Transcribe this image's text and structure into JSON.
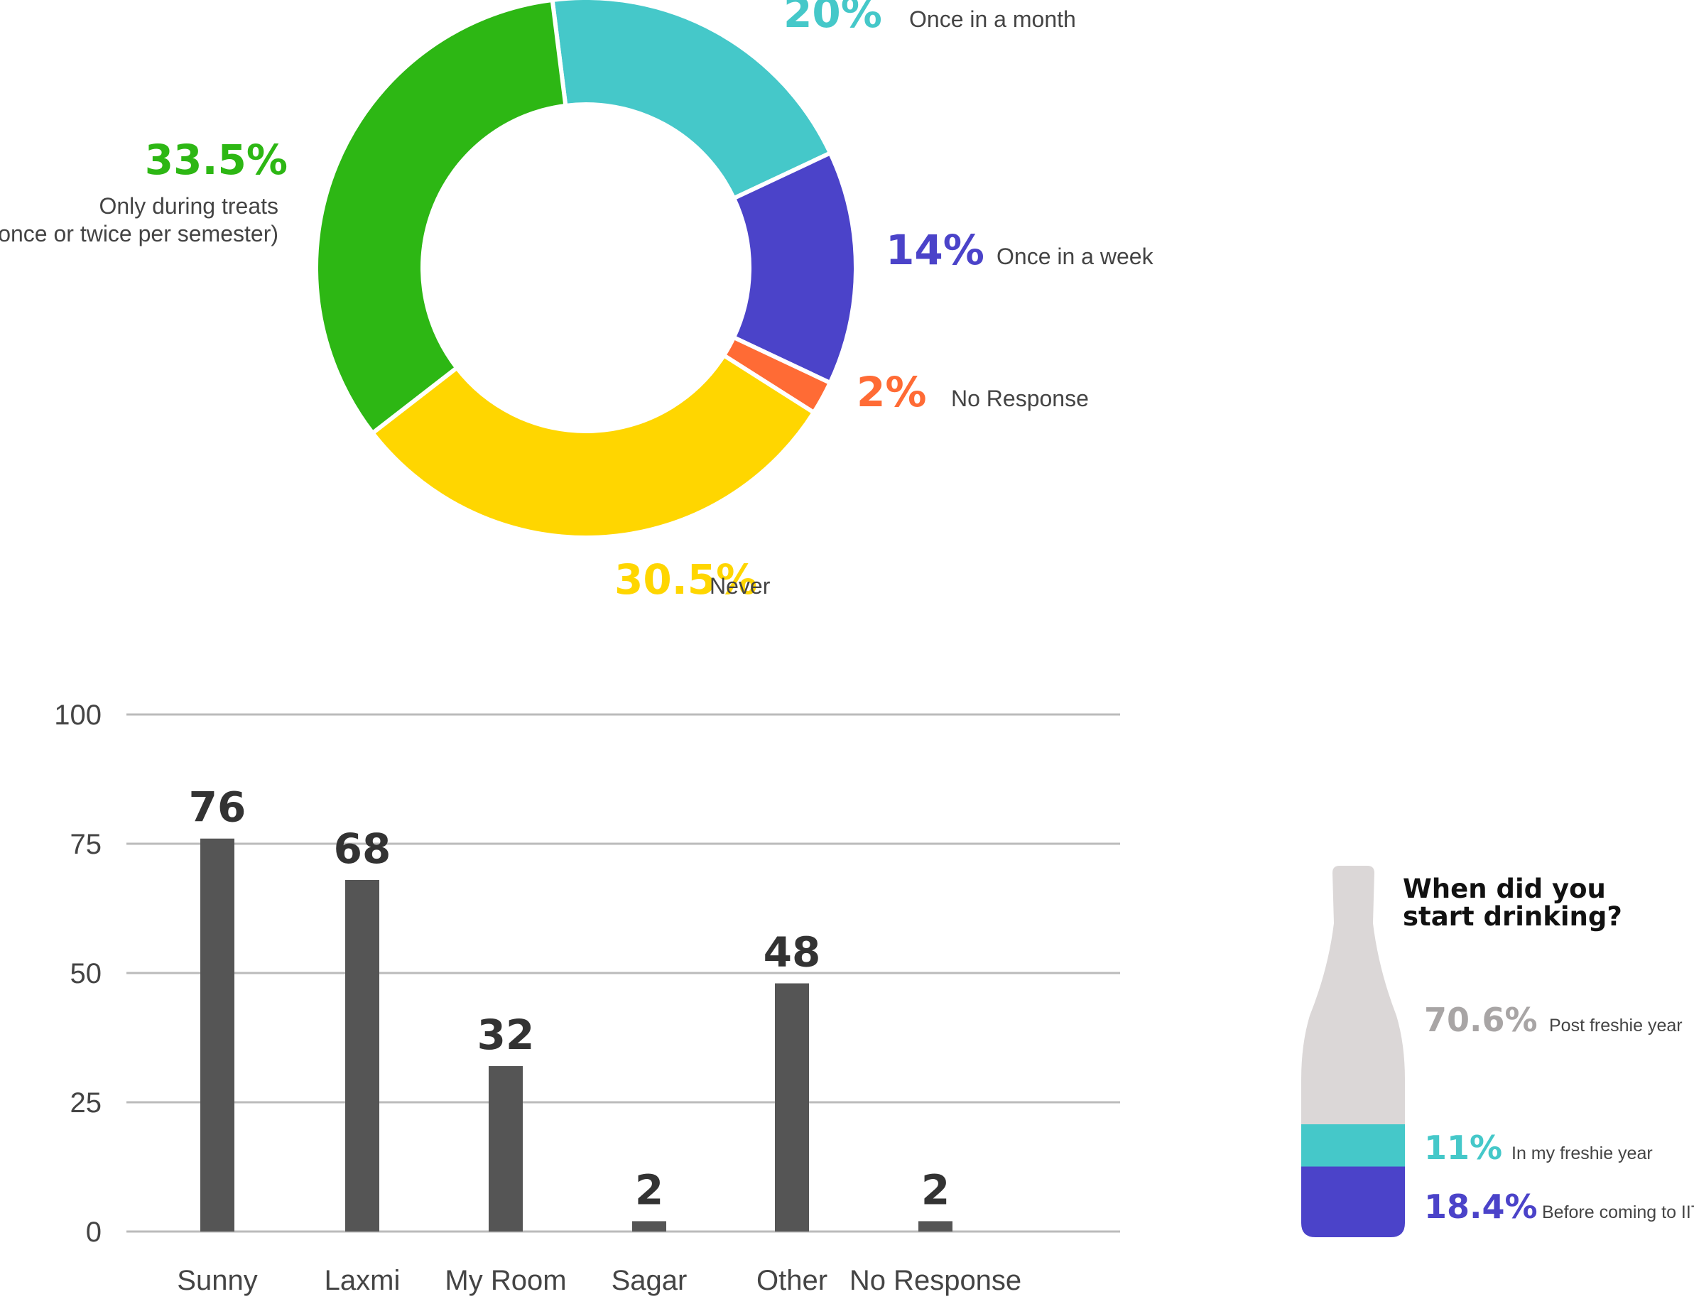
{
  "chart_data": [
    {
      "type": "pie",
      "title": "",
      "slices": [
        {
          "value": 20,
          "pct_label": "20%",
          "label": "Once in a month",
          "color": "#45C8C9"
        },
        {
          "value": 14,
          "pct_label": "14%",
          "label": "Once in a week",
          "color": "#4B43C9"
        },
        {
          "value": 2,
          "pct_label": "2%",
          "label": "No Response",
          "color": "#FF6B35"
        },
        {
          "value": 30.5,
          "pct_label": "30.5%",
          "label": "Never",
          "color": "#FFD600"
        },
        {
          "value": 33.5,
          "pct_label": "33.5%",
          "label_lines": [
            "Only during treats",
            "(once or twice per semester)"
          ],
          "color": "#2DB714"
        }
      ]
    },
    {
      "type": "bar",
      "title": "",
      "categories": [
        "Sunny",
        "Laxmi",
        "My Room",
        "Sagar",
        "Other",
        "No Response"
      ],
      "values": [
        76,
        68,
        32,
        2,
        48,
        2
      ],
      "data_labels": [
        "76",
        "68",
        "32",
        "2",
        "48",
        "2"
      ],
      "yticks": [
        "0",
        "25",
        "50",
        "75",
        "100"
      ],
      "ylim": [
        0,
        100
      ],
      "grid": true,
      "bar_color": "#555555",
      "grid_color": "#BBBBBB"
    },
    {
      "type": "bar",
      "subtype": "stacked-bottle",
      "title_lines": [
        "When did you",
        "start drinking?"
      ],
      "segments": [
        {
          "value": 18.4,
          "pct_label": "18.4%",
          "label": "Before coming to IIT",
          "color": "#4B43C9"
        },
        {
          "value": 11,
          "pct_label": "11%",
          "label": "In my freshie year",
          "color": "#45C8C9"
        },
        {
          "value": 70.6,
          "pct_label": "70.6%",
          "label": "Post freshie year",
          "color": "#DBD7D7",
          "text_color": "#A8A5A5"
        }
      ]
    }
  ]
}
